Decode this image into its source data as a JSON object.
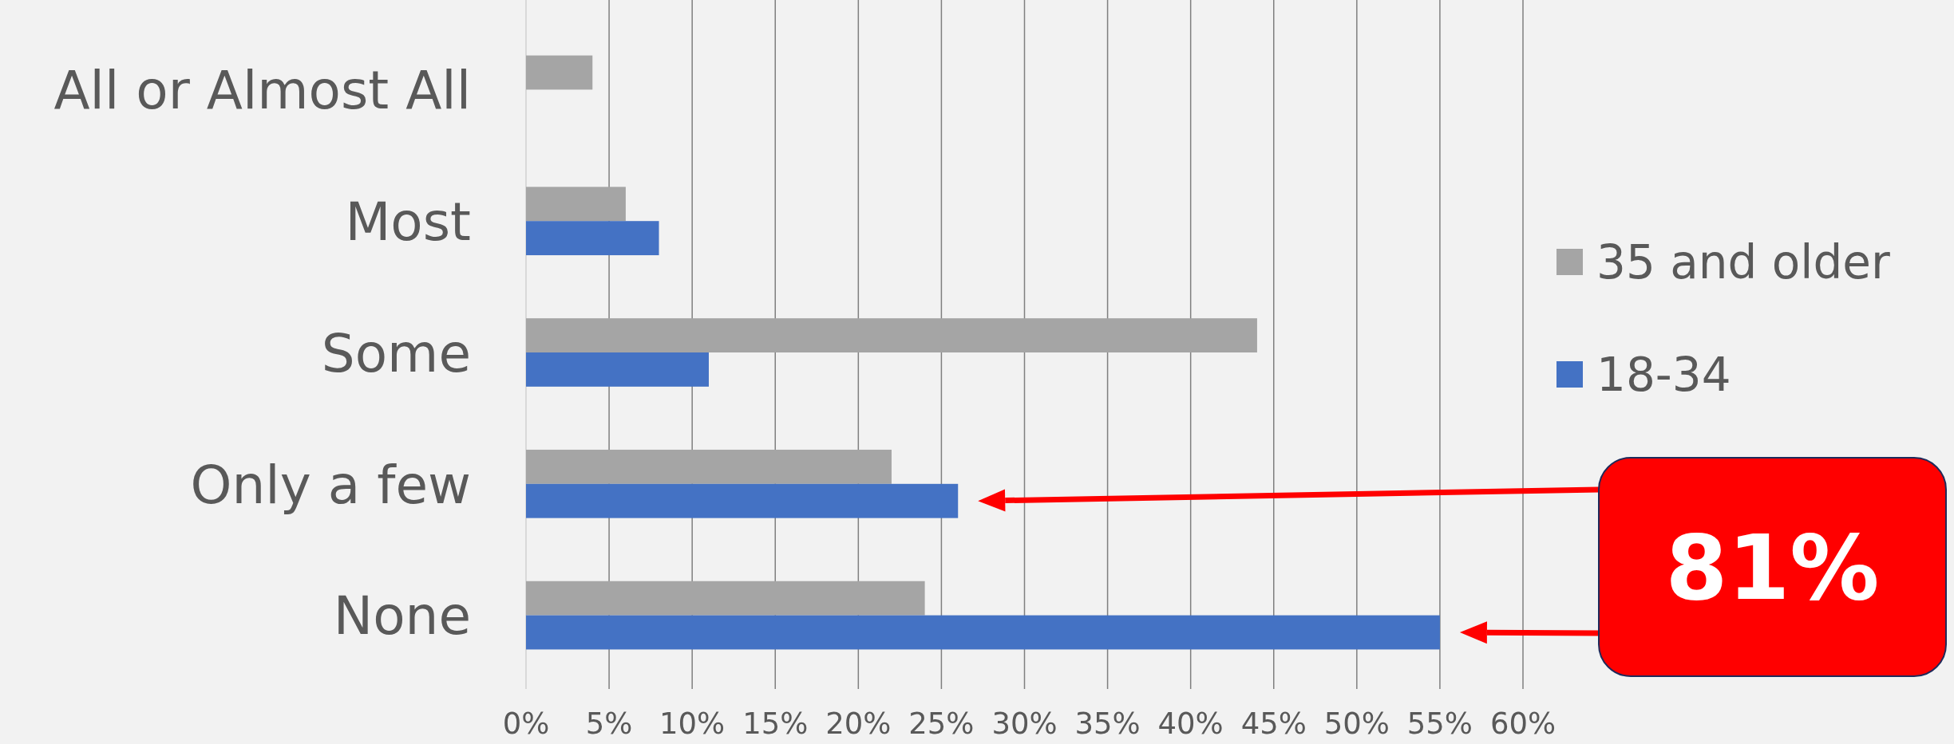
{
  "chart_data": {
    "type": "bar",
    "orientation": "horizontal",
    "categories": [
      "All or Almost All",
      "Most",
      "Some",
      "Only a few",
      "None"
    ],
    "series": [
      {
        "name": "35 and older",
        "color": "#a5a5a5",
        "values": [
          4,
          6,
          44,
          22,
          24
        ]
      },
      {
        "name": "18-34",
        "color": "#4472c4",
        "values": [
          null,
          8,
          11,
          26,
          55
        ]
      }
    ],
    "xlim": [
      0,
      60
    ],
    "xticks": [
      {
        "value": 0,
        "label": "0%"
      },
      {
        "value": 5,
        "label": "5%"
      },
      {
        "value": 10,
        "label": "10%"
      },
      {
        "value": 15,
        "label": "15%"
      },
      {
        "value": 20,
        "label": "20%"
      },
      {
        "value": 25,
        "label": "25%"
      },
      {
        "value": 30,
        "label": "30%"
      },
      {
        "value": 35,
        "label": "35%"
      },
      {
        "value": 40,
        "label": "40%"
      },
      {
        "value": 45,
        "label": "45%"
      },
      {
        "value": 50,
        "label": "50%"
      },
      {
        "value": 55,
        "label": "55%"
      },
      {
        "value": 60,
        "label": "60%"
      }
    ],
    "grid": "x",
    "legend": "right",
    "annotations": [
      "81%"
    ]
  }
}
